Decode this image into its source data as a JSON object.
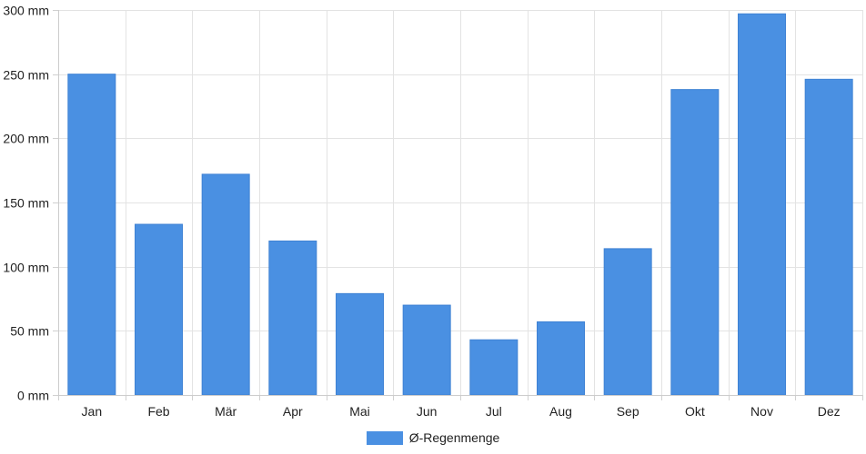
{
  "chart_data": {
    "type": "bar",
    "title": "",
    "xlabel": "",
    "ylabel": "",
    "categories": [
      "Jan",
      "Feb",
      "Mär",
      "Apr",
      "Mai",
      "Jun",
      "Jul",
      "Aug",
      "Sep",
      "Okt",
      "Nov",
      "Dez"
    ],
    "series": [
      {
        "name": "Ø-Regenmenge",
        "values": [
          250,
          133,
          172,
          120,
          79,
          70,
          43,
          57,
          114,
          238,
          297,
          246
        ],
        "color": "#4a90e2"
      }
    ],
    "ylim": [
      0,
      300
    ],
    "yticks": [
      0,
      50,
      100,
      150,
      200,
      250,
      300
    ],
    "ytick_labels": [
      "0 mm",
      "50 mm",
      "100 mm",
      "150 mm",
      "200 mm",
      "250 mm",
      "300 mm"
    ],
    "grid": true,
    "legend": "bottom"
  }
}
